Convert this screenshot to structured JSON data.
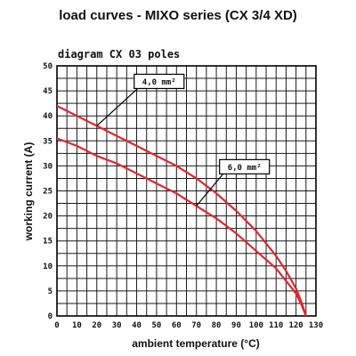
{
  "chart_data": {
    "type": "line",
    "title": "load curves - MIXO series (CX 3/4 XD)",
    "subtitle": "diagram CX 03 poles",
    "xlabel": "ambient temperature (°C)",
    "ylabel": "working current (A)",
    "xlim": [
      0,
      130
    ],
    "ylim": [
      0,
      50
    ],
    "xticks": [
      "0",
      "10",
      "20",
      "30",
      "40",
      "50",
      "60",
      "70",
      "80",
      "90",
      "100",
      "110",
      "120",
      "130"
    ],
    "yticks": [
      "0",
      "5",
      "10",
      "15",
      "20",
      "25",
      "30",
      "35",
      "40",
      "45",
      "50"
    ],
    "grid": true,
    "series": [
      {
        "name": "4,0 mm²",
        "color": "#e3262b",
        "x": [
          0,
          10,
          20,
          30,
          40,
          50,
          60,
          70,
          80,
          90,
          100,
          110,
          115,
          120,
          123,
          125
        ],
        "y": [
          42,
          40,
          38,
          36,
          34,
          32,
          30,
          27.5,
          24.5,
          21,
          17,
          12,
          9,
          5.5,
          2.5,
          0
        ]
      },
      {
        "name": "6,0 mm²",
        "color": "#e3262b",
        "x": [
          0,
          10,
          20,
          30,
          40,
          50,
          60,
          70,
          80,
          90,
          100,
          110,
          115,
          120,
          123,
          125
        ],
        "y": [
          35.5,
          34,
          32,
          30.5,
          28.5,
          26.5,
          24.5,
          22,
          19.5,
          16.5,
          13,
          9.5,
          7,
          4.5,
          2,
          0
        ]
      }
    ],
    "annotations": [
      {
        "text": "4,0 mm²",
        "series": 0,
        "target_x": 20
      },
      {
        "text": "6,0 mm²",
        "series": 1,
        "target_x": 70
      }
    ]
  }
}
